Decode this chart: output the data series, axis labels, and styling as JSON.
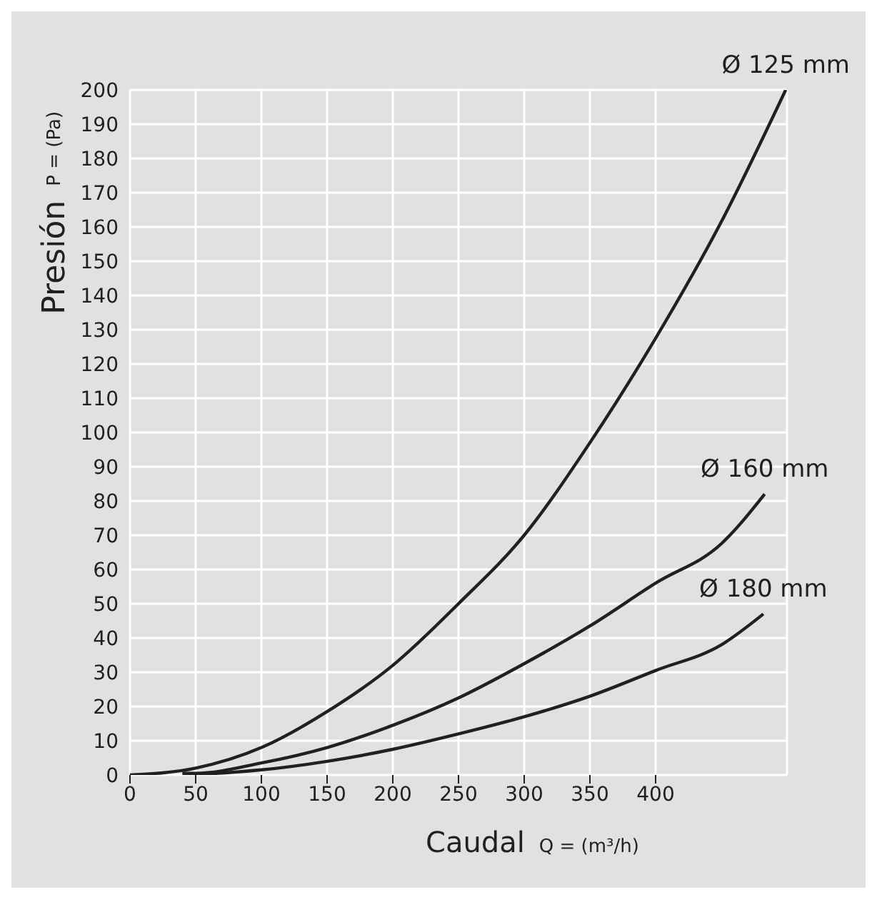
{
  "chart_data": {
    "type": "line",
    "xlabel": "Caudal",
    "ylabel": "Presión",
    "annotations": [
      "P = (Pa)",
      "Q = (m³/h)"
    ],
    "xlim": [
      0,
      500
    ],
    "xticks": [
      0,
      50,
      100,
      150,
      200,
      250,
      300,
      350,
      400
    ],
    "ylim": [
      0,
      200
    ],
    "yticks": [
      0,
      10,
      20,
      30,
      40,
      50,
      60,
      70,
      80,
      90,
      100,
      110,
      120,
      130,
      140,
      150,
      160,
      170,
      180,
      190,
      200
    ],
    "grid": true,
    "marker": "none",
    "line_style": "solid",
    "series": [
      {
        "name": "Ø 125 mm",
        "color": "#231f20",
        "x": [
          0,
          50,
          100,
          150,
          200,
          250,
          300,
          350,
          400,
          450,
          499
        ],
        "values": [
          0,
          2,
          8,
          18.5,
          32,
          50,
          70,
          97,
          127.5,
          161.5,
          200
        ]
      },
      {
        "name": "Ø 160 mm",
        "color": "#231f20",
        "x": [
          40,
          50,
          100,
          150,
          200,
          250,
          300,
          350,
          400,
          450,
          483
        ],
        "values": [
          0.5,
          0.5,
          3.5,
          8,
          14.5,
          22.5,
          32.5,
          43.5,
          56,
          67.5,
          82
        ]
      },
      {
        "name": "Ø 180 mm",
        "color": "#231f20",
        "x": [
          40,
          50,
          100,
          150,
          200,
          250,
          300,
          350,
          400,
          450,
          482
        ],
        "values": [
          0.5,
          0.3,
          1.5,
          4,
          7.5,
          12,
          17,
          23,
          30.5,
          38,
          47
        ]
      }
    ]
  }
}
